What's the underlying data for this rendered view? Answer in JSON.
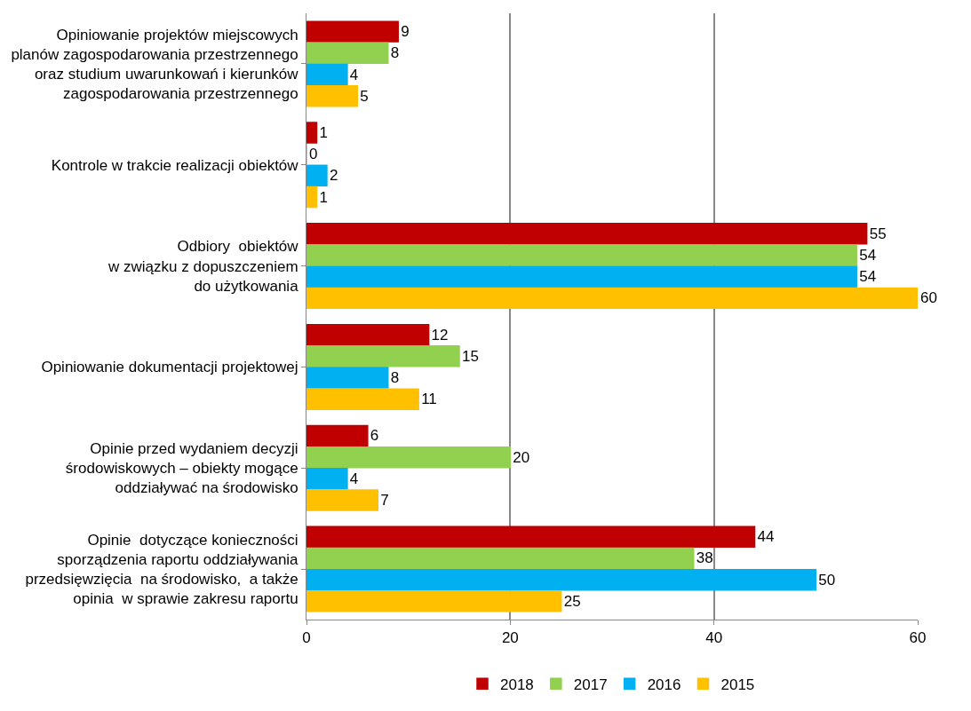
{
  "chart_data": {
    "type": "bar",
    "orientation": "horizontal",
    "categories": [
      "Opiniowanie projektów miejscowych\nplanów zagospodarowania przestrzennego\noraz studium uwarunkowań i kierunków\nzagospodarowania przestrzennego",
      "Kontrole w trakcie realizacji obiektów",
      "Odbiory  obiektów\nw związku z dopuszczeniem\ndo użytkowania",
      "Opiniowanie dokumentacji projektowej",
      "Opinie przed wydaniem decyzji\nśrodowiskowych – obiekty mogące\noddziaływać na środowisko",
      "Opinie  dotyczące konieczności\nsporządzenia raportu oddziaływania\nprzedsięwzięcia  na środowisko,  a także\nopinia  w sprawie zakresu raportu"
    ],
    "series": [
      {
        "name": "2018",
        "color": "#c00000",
        "values": [
          9,
          1,
          55,
          12,
          6,
          44
        ]
      },
      {
        "name": "2017",
        "color": "#92d050",
        "values": [
          8,
          0,
          54,
          15,
          20,
          38
        ]
      },
      {
        "name": "2016",
        "color": "#00b0f0",
        "values": [
          4,
          2,
          54,
          8,
          4,
          50
        ]
      },
      {
        "name": "2015",
        "color": "#ffc000",
        "values": [
          5,
          1,
          60,
          11,
          7,
          25
        ]
      }
    ],
    "xlim": [
      0,
      60
    ],
    "xticks": [
      0,
      20,
      40,
      60
    ],
    "grid": "x",
    "legend": "bottom",
    "data_labels": true
  }
}
